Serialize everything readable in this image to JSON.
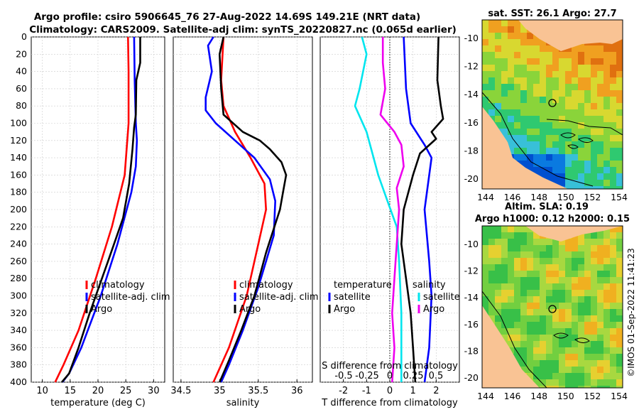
{
  "header": {
    "title_line1": "Argo profile: csiro 5906645_76 27-Aug-2022 14.69S 149.21E (NRT data)",
    "title_line2": "Climatology: CARS2009. Satellite-adj clim: synTS_20220827.nc (0.065d earlier)"
  },
  "colors": {
    "climatology": "#ff0000",
    "satellite": "#0000ff",
    "argo": "#000000",
    "cyan": "#00e5ee",
    "magenta": "#ee00ee"
  },
  "chart_data": [
    {
      "type": "line",
      "id": "temperature",
      "xlabel": "temperature (deg C)",
      "ylabel": "depth",
      "xlim": [
        8,
        32
      ],
      "ylim": [
        400,
        0
      ],
      "xticks": [
        10,
        15,
        20,
        25,
        30
      ],
      "yticks": [
        0,
        20,
        40,
        60,
        80,
        100,
        120,
        140,
        160,
        180,
        200,
        220,
        240,
        260,
        280,
        300,
        320,
        340,
        360,
        380,
        400
      ],
      "legend": [
        "climatology",
        "satellite-adj. clim",
        "Argo"
      ],
      "series": [
        {
          "name": "climatology",
          "color": "#ff0000",
          "points": [
            [
              25.4,
              0
            ],
            [
              25.5,
              40
            ],
            [
              25.5,
              100
            ],
            [
              24.8,
              160
            ],
            [
              22.5,
              220
            ],
            [
              19.6,
              280
            ],
            [
              16.5,
              340
            ],
            [
              13.8,
              380
            ],
            [
              12.3,
              400
            ]
          ]
        },
        {
          "name": "satellite-adj. clim",
          "color": "#0000ff",
          "points": [
            [
              26.5,
              0
            ],
            [
              26.6,
              50
            ],
            [
              26.8,
              100
            ],
            [
              27.0,
              120
            ],
            [
              26.8,
              150
            ],
            [
              26.0,
              180
            ],
            [
              23.5,
              240
            ],
            [
              20.5,
              300
            ],
            [
              17.0,
              360
            ],
            [
              14.8,
              390
            ],
            [
              13.6,
              400
            ]
          ]
        },
        {
          "name": "Argo",
          "color": "#000000",
          "points": [
            [
              27.6,
              0
            ],
            [
              27.6,
              30
            ],
            [
              26.9,
              50
            ],
            [
              26.8,
              90
            ],
            [
              26.5,
              105
            ],
            [
              26.2,
              130
            ],
            [
              25.6,
              170
            ],
            [
              24.5,
              210
            ],
            [
              21.8,
              260
            ],
            [
              18.5,
              320
            ],
            [
              16.5,
              360
            ],
            [
              14.8,
              390
            ],
            [
              13.5,
              400
            ]
          ]
        }
      ]
    },
    {
      "type": "line",
      "id": "salinity",
      "xlabel": "salinity",
      "xlim": [
        34.4,
        36.2
      ],
      "ylim": [
        400,
        0
      ],
      "xticks": [
        34.5,
        35,
        35.5,
        36
      ],
      "legend": [
        "climatology",
        "satellite-adj. clim",
        "Argo"
      ],
      "series": [
        {
          "name": "climatology",
          "color": "#ff0000",
          "points": [
            [
              35.05,
              0
            ],
            [
              35.02,
              50
            ],
            [
              35.05,
              80
            ],
            [
              35.2,
              110
            ],
            [
              35.4,
              140
            ],
            [
              35.58,
              170
            ],
            [
              35.6,
              200
            ],
            [
              35.5,
              240
            ],
            [
              35.35,
              300
            ],
            [
              35.12,
              360
            ],
            [
              34.92,
              400
            ]
          ]
        },
        {
          "name": "satellite-adj. clim",
          "color": "#0000ff",
          "points": [
            [
              34.92,
              0
            ],
            [
              34.85,
              10
            ],
            [
              34.9,
              40
            ],
            [
              34.82,
              70
            ],
            [
              34.82,
              85
            ],
            [
              34.95,
              100
            ],
            [
              35.2,
              120
            ],
            [
              35.45,
              140
            ],
            [
              35.65,
              165
            ],
            [
              35.72,
              190
            ],
            [
              35.7,
              230
            ],
            [
              35.5,
              290
            ],
            [
              35.3,
              340
            ],
            [
              35.12,
              380
            ],
            [
              35.02,
              400
            ]
          ]
        },
        {
          "name": "Argo",
          "color": "#000000",
          "points": [
            [
              35.05,
              0
            ],
            [
              35.0,
              20
            ],
            [
              35.02,
              60
            ],
            [
              35.05,
              90
            ],
            [
              35.3,
              110
            ],
            [
              35.52,
              120
            ],
            [
              35.65,
              130
            ],
            [
              35.8,
              145
            ],
            [
              35.86,
              160
            ],
            [
              35.82,
              180
            ],
            [
              35.78,
              200
            ],
            [
              35.6,
              250
            ],
            [
              35.45,
              300
            ],
            [
              35.28,
              340
            ],
            [
              35.12,
              375
            ],
            [
              35.0,
              400
            ]
          ]
        }
      ]
    },
    {
      "type": "line",
      "id": "differences",
      "xlabel": "T difference from climatology",
      "xlabel_top": "S difference from climatology",
      "xlim": [
        -3,
        3
      ],
      "ylim": [
        400,
        0
      ],
      "xticks": [
        -2,
        -1,
        0,
        1,
        2
      ],
      "xticks_S": [
        "-0.5",
        "-0.25",
        "0",
        "0.25",
        "0.5"
      ],
      "legend_left_title": "temperature",
      "legend_right_title": "salinity",
      "legend_left": [
        "satellite",
        "Argo"
      ],
      "legend_right": [
        "satellite",
        "Argo"
      ],
      "series": [
        {
          "name": "T satellite",
          "color": "#0000ff",
          "points": [
            [
              0.6,
              0
            ],
            [
              0.7,
              60
            ],
            [
              0.9,
              100
            ],
            [
              1.5,
              125
            ],
            [
              1.8,
              140
            ],
            [
              1.5,
              200
            ],
            [
              1.7,
              260
            ],
            [
              1.8,
              300
            ],
            [
              1.7,
              360
            ],
            [
              1.5,
              400
            ]
          ]
        },
        {
          "name": "T Argo",
          "color": "#000000",
          "points": [
            [
              2.1,
              0
            ],
            [
              2.05,
              50
            ],
            [
              2.2,
              80
            ],
            [
              2.3,
              95
            ],
            [
              1.8,
              110
            ],
            [
              2.0,
              118
            ],
            [
              1.3,
              135
            ],
            [
              1.0,
              160
            ],
            [
              0.6,
              200
            ],
            [
              0.5,
              240
            ],
            [
              0.7,
              280
            ],
            [
              0.9,
              320
            ],
            [
              1.0,
              360
            ],
            [
              1.1,
              400
            ]
          ]
        },
        {
          "name": "S satellite",
          "color": "#00e5ee",
          "points": [
            [
              -1.2,
              0
            ],
            [
              -1.0,
              20
            ],
            [
              -1.3,
              60
            ],
            [
              -1.5,
              80
            ],
            [
              -1.0,
              110
            ],
            [
              -0.8,
              130
            ],
            [
              -0.5,
              160
            ],
            [
              -0.1,
              190
            ],
            [
              0.3,
              220
            ],
            [
              0.4,
              260
            ],
            [
              0.5,
              320
            ],
            [
              0.5,
              400
            ]
          ]
        },
        {
          "name": "S Argo",
          "color": "#ee00ee",
          "points": [
            [
              -0.3,
              0
            ],
            [
              -0.3,
              30
            ],
            [
              -0.2,
              60
            ],
            [
              -0.4,
              90
            ],
            [
              0.2,
              110
            ],
            [
              0.5,
              125
            ],
            [
              0.6,
              150
            ],
            [
              0.3,
              175
            ],
            [
              0.4,
              200
            ],
            [
              0.3,
              240
            ],
            [
              0.2,
              280
            ],
            [
              0.1,
              320
            ],
            [
              0.2,
              360
            ],
            [
              0.1,
              400
            ]
          ]
        }
      ]
    },
    {
      "type": "heatmap",
      "id": "sst_map",
      "title": "sat. SST: 26.1 Argo: 27.7",
      "xticks": [
        144,
        146,
        148,
        150,
        152,
        154
      ],
      "yticks": [
        -10,
        -12,
        -14,
        -16,
        -18,
        -20
      ],
      "marker": [
        149.21,
        -14.69
      ]
    },
    {
      "type": "heatmap",
      "id": "sla_map",
      "title_line1": "Altim. SLA: 0.19",
      "title_line2": "Argo h1000: 0.12 h2000: 0.15",
      "xticks": [
        144,
        146,
        148,
        150,
        152,
        154
      ],
      "yticks": [
        -10,
        -12,
        -14,
        -16,
        -18,
        -20
      ],
      "marker": [
        149.21,
        -14.69
      ]
    }
  ],
  "footer": {
    "stamp": "©IMOS 01-Sep-2022 11:41:23"
  }
}
